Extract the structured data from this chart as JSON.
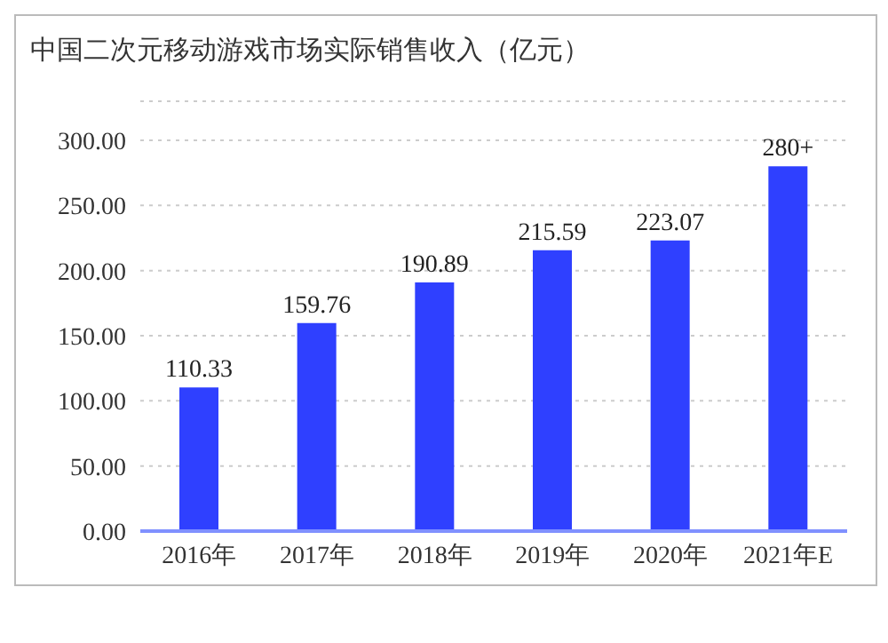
{
  "chart_data": {
    "type": "bar",
    "title": "中国二次元移动游戏市场实际销售收入（亿元）",
    "categories": [
      "2016年",
      "2017年",
      "2018年",
      "2019年",
      "2020年",
      "2021年E"
    ],
    "values": [
      110.33,
      159.76,
      190.89,
      215.59,
      223.07,
      280
    ],
    "value_labels": [
      "110.33",
      "159.76",
      "190.89",
      "215.59",
      "223.07",
      "280+"
    ],
    "color": "#2f40ff",
    "ylim": [
      0,
      330
    ],
    "yticks": [
      {
        "value": 0,
        "label": "0.00"
      },
      {
        "value": 50,
        "label": "50.00"
      },
      {
        "value": 100,
        "label": "100.00"
      },
      {
        "value": 150,
        "label": "150.00"
      },
      {
        "value": 200,
        "label": "200.00"
      },
      {
        "value": 250,
        "label": "250.00"
      },
      {
        "value": 300,
        "label": "300.00"
      }
    ],
    "grid": "y"
  }
}
